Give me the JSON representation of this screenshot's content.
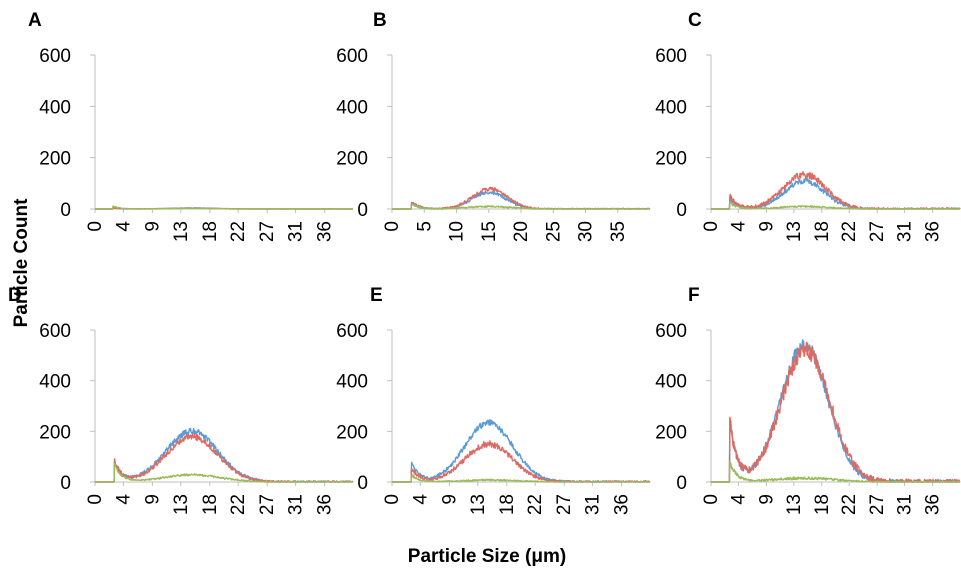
{
  "figure": {
    "ylabel": "Particle Count",
    "xlabel": "Particle Size (μm)",
    "series_colors": {
      "blue": "#5b9bd5",
      "red": "#dc6b63",
      "green": "#9bbb59"
    }
  },
  "chart_data": [
    {
      "type": "line",
      "panel": "A",
      "ylim": [
        0,
        600
      ],
      "yticks": [
        "0",
        "200",
        "400",
        "600"
      ],
      "xlim": [
        0,
        40
      ],
      "xticks": [
        "0",
        "4",
        "9",
        "13",
        "18",
        "22",
        "27",
        "31",
        "36"
      ],
      "xtick_values": [
        0,
        4.4,
        8.9,
        13.3,
        17.8,
        22.2,
        26.7,
        31.1,
        35.6
      ],
      "series": [
        {
          "color": "#5b9bd5",
          "onset": 2.8,
          "spike": 4,
          "peak": 4,
          "center": 15,
          "width": 3.5,
          "noise": 1
        },
        {
          "color": "#dc6b63",
          "onset": 2.8,
          "spike": 5,
          "peak": 3,
          "center": 15,
          "width": 3.5,
          "noise": 1
        },
        {
          "color": "#9bbb59",
          "onset": 2.8,
          "spike": 10,
          "peak": 2,
          "center": 15,
          "width": 4,
          "noise": 1
        }
      ]
    },
    {
      "type": "line",
      "panel": "B",
      "ylim": [
        0,
        600
      ],
      "yticks": [
        "0",
        "200",
        "400",
        "600"
      ],
      "xlim": [
        0,
        40
      ],
      "xticks": [
        "0",
        "5",
        "10",
        "15",
        "20",
        "25",
        "30",
        "35"
      ],
      "xtick_values": [
        0,
        5,
        10,
        15,
        20,
        25,
        30,
        35
      ],
      "series": [
        {
          "color": "#5b9bd5",
          "onset": 3,
          "spike": 25,
          "peak": 65,
          "center": 15,
          "width": 2.6,
          "noise": 6
        },
        {
          "color": "#dc6b63",
          "onset": 3,
          "spike": 30,
          "peak": 78,
          "center": 15.2,
          "width": 2.7,
          "noise": 7
        },
        {
          "color": "#9bbb59",
          "onset": 3,
          "spike": 20,
          "peak": 10,
          "center": 15,
          "width": 3.5,
          "noise": 3
        }
      ]
    },
    {
      "type": "line",
      "panel": "C",
      "ylim": [
        0,
        600
      ],
      "yticks": [
        "0",
        "200",
        "400",
        "600"
      ],
      "xlim": [
        0,
        40
      ],
      "xticks": [
        "0",
        "4",
        "9",
        "13",
        "18",
        "22",
        "27",
        "31",
        "36"
      ],
      "xtick_values": [
        0,
        4.4,
        8.9,
        13.3,
        17.8,
        22.2,
        26.7,
        31.1,
        35.6
      ],
      "series": [
        {
          "color": "#5b9bd5",
          "onset": 3,
          "spike": 45,
          "peak": 110,
          "center": 15,
          "width": 3.2,
          "noise": 10
        },
        {
          "color": "#dc6b63",
          "onset": 3,
          "spike": 55,
          "peak": 135,
          "center": 15,
          "width": 3.4,
          "noise": 12
        },
        {
          "color": "#9bbb59",
          "onset": 3,
          "spike": 25,
          "peak": 10,
          "center": 15,
          "width": 4,
          "noise": 3
        }
      ]
    },
    {
      "type": "line",
      "panel": "D",
      "ylim": [
        0,
        600
      ],
      "yticks": [
        "0",
        "200",
        "400",
        "600"
      ],
      "xlim": [
        0,
        40
      ],
      "xticks": [
        "0",
        "4",
        "9",
        "13",
        "18",
        "22",
        "27",
        "31",
        "36"
      ],
      "xtick_values": [
        0,
        4.4,
        8.9,
        13.3,
        17.8,
        22.2,
        26.7,
        31.1,
        35.6
      ],
      "series": [
        {
          "color": "#5b9bd5",
          "onset": 3,
          "spike": 80,
          "peak": 200,
          "center": 15,
          "width": 4,
          "noise": 12
        },
        {
          "color": "#dc6b63",
          "onset": 3,
          "spike": 85,
          "peak": 180,
          "center": 15,
          "width": 4,
          "noise": 12
        },
        {
          "color": "#9bbb59",
          "onset": 3,
          "spike": 70,
          "peak": 28,
          "center": 15,
          "width": 4.5,
          "noise": 4
        }
      ]
    },
    {
      "type": "line",
      "panel": "E",
      "ylim": [
        0,
        600
      ],
      "yticks": [
        "0",
        "200",
        "400",
        "600"
      ],
      "xlim": [
        0,
        40
      ],
      "xticks": [
        "0",
        "4",
        "9",
        "13",
        "18",
        "22",
        "27",
        "31",
        "36"
      ],
      "xtick_values": [
        0,
        4.4,
        8.9,
        13.3,
        17.8,
        22.2,
        26.7,
        31.1,
        35.6
      ],
      "series": [
        {
          "color": "#5b9bd5",
          "onset": 3,
          "spike": 85,
          "peak": 235,
          "center": 15,
          "width": 3.7,
          "noise": 12
        },
        {
          "color": "#dc6b63",
          "onset": 3,
          "spike": 60,
          "peak": 150,
          "center": 15,
          "width": 3.7,
          "noise": 12
        },
        {
          "color": "#9bbb59",
          "onset": 3,
          "spike": 30,
          "peak": 8,
          "center": 15,
          "width": 4.5,
          "noise": 3
        }
      ]
    },
    {
      "type": "line",
      "panel": "F",
      "ylim": [
        0,
        600
      ],
      "yticks": [
        "0",
        "200",
        "400",
        "600"
      ],
      "xlim": [
        0,
        40
      ],
      "xticks": [
        "0",
        "4",
        "9",
        "13",
        "18",
        "22",
        "27",
        "31",
        "36"
      ],
      "xtick_values": [
        0,
        4.4,
        8.9,
        13.3,
        17.8,
        22.2,
        26.7,
        31.1,
        35.6
      ],
      "series": [
        {
          "color": "#5b9bd5",
          "onset": 3,
          "spike": 250,
          "peak": 540,
          "center": 15,
          "width": 3.8,
          "noise": 25
        },
        {
          "color": "#dc6b63",
          "onset": 3,
          "spike": 255,
          "peak": 520,
          "center": 15.2,
          "width": 3.9,
          "noise": 30
        },
        {
          "color": "#9bbb59",
          "onset": 3,
          "spike": 80,
          "peak": 15,
          "center": 15,
          "width": 5,
          "noise": 5
        }
      ]
    }
  ]
}
